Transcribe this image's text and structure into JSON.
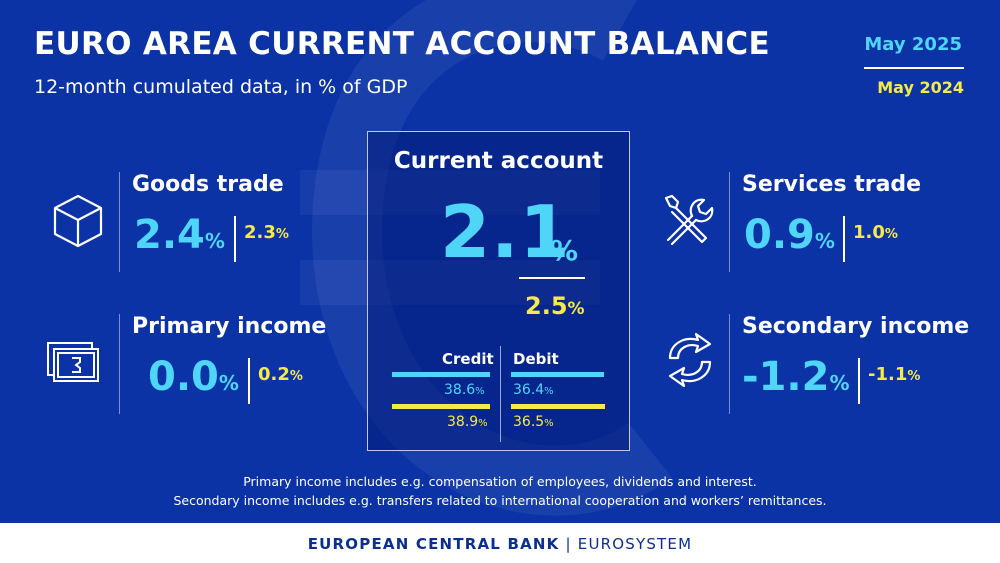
{
  "header": {
    "title": "EURO AREA CURRENT ACCOUNT BALANCE",
    "subtitle": "12-month cumulated data, in % of GDP"
  },
  "legend": {
    "current_period": "May 2025",
    "previous_period": "May 2024"
  },
  "colors": {
    "background": "#0b33a6",
    "current_value": "#4fd5f7",
    "previous_value": "#f6e94a",
    "footer_text": "#0b2f91"
  },
  "percent_sign": "%",
  "goods_trade": {
    "label": "Goods trade",
    "current": "2.4",
    "previous": "2.3",
    "icon": "box-icon"
  },
  "primary_income": {
    "label": "Primary income",
    "current": "0.0",
    "previous": "0.2",
    "icon": "banknote-icon"
  },
  "services_trade": {
    "label": "Services trade",
    "current": "0.9",
    "previous": "1.0",
    "icon": "tools-icon"
  },
  "secondary_income": {
    "label": "Secondary income",
    "current": "-1.2",
    "previous": "-1.1",
    "icon": "transfer-arrows-icon"
  },
  "current_account": {
    "label": "Current account",
    "current": "2.1",
    "previous": "2.5",
    "credit_label": "Credit",
    "debit_label": "Debit",
    "credit_current": "38.6",
    "credit_previous": "38.9",
    "debit_current": "36.4",
    "debit_previous": "36.5"
  },
  "notes": {
    "line1": "Primary income includes e.g. compensation of employees, dividends and interest.",
    "line2": "Secondary income includes e.g. transfers related to international cooperation and workers’ remittances."
  },
  "footer": {
    "bank": "EUROPEAN CENTRAL BANK",
    "separator": "|",
    "system": "EUROSYSTEM"
  }
}
